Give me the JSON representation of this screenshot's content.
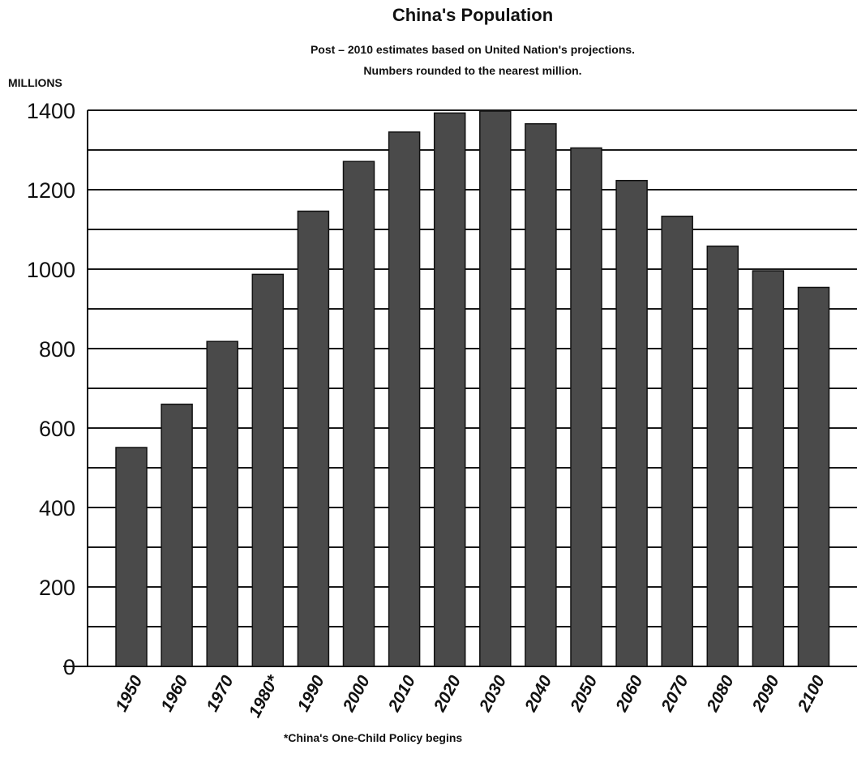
{
  "chart_data": {
    "type": "bar",
    "title": "China's Population",
    "subtitle_line1": "Post – 2010 estimates based on United Nation's projections.",
    "subtitle_line2": "Numbers rounded to the nearest million.",
    "ylabel": "MILLIONS",
    "xlabel": "",
    "ylim": [
      0,
      1400
    ],
    "yticks": [
      "0",
      "200",
      "400",
      "600",
      "800",
      "1000",
      "1200",
      "1400"
    ],
    "categories": [
      "1950",
      "1960",
      "1970",
      "1980*",
      "1990",
      "2000",
      "2010",
      "2020",
      "2030",
      "2040",
      "2050",
      "2060",
      "2070",
      "2080",
      "2090",
      "2100"
    ],
    "values": [
      551,
      660,
      818,
      987,
      1146,
      1271,
      1345,
      1393,
      1398,
      1366,
      1305,
      1223,
      1133,
      1058,
      996,
      954
    ],
    "footnote": "*China's One-Child Policy begins",
    "bar_color": "#4a4a4a",
    "grid": true
  }
}
